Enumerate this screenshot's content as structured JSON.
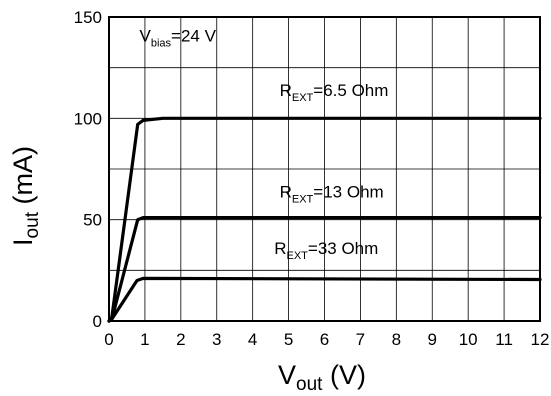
{
  "chart_data": {
    "type": "line",
    "xlabel": {
      "main": "V",
      "sub": "out",
      "unit": " (V)"
    },
    "ylabel": {
      "main": "I",
      "sub": "out",
      "unit": " (mA)"
    },
    "xlim": [
      0,
      12
    ],
    "ylim": [
      0,
      150
    ],
    "xticks": [
      0,
      1,
      2,
      3,
      4,
      5,
      6,
      7,
      8,
      9,
      10,
      11,
      12
    ],
    "yticks": [
      0,
      50,
      100,
      150
    ],
    "grid": true,
    "series": [
      {
        "x": [
          0,
          0.08,
          0.8,
          0.95,
          1.5,
          12
        ],
        "y": [
          0,
          2,
          97,
          99,
          100,
          100
        ]
      },
      {
        "x": [
          0,
          0.08,
          0.8,
          0.95,
          12
        ],
        "y": [
          0,
          1,
          50,
          51,
          51
        ]
      },
      {
        "x": [
          0,
          0.08,
          0.78,
          0.95,
          12
        ],
        "y": [
          0,
          1,
          20,
          21,
          20.5
        ]
      }
    ],
    "annotations": [
      {
        "main": "V",
        "sub": "bias",
        "rest": "=24 V",
        "x": 0.85,
        "y": 138
      },
      {
        "main": "R",
        "sub": "EXT",
        "rest": "=6.5 Ohm",
        "x": 4.75,
        "y": 111
      },
      {
        "main": "R",
        "sub": "EXT",
        "rest": "=13 Ohm",
        "x": 4.75,
        "y": 61
      },
      {
        "main": "R",
        "sub": "EXT",
        "rest": "=33 Ohm",
        "x": 4.6,
        "y": 33
      }
    ]
  }
}
